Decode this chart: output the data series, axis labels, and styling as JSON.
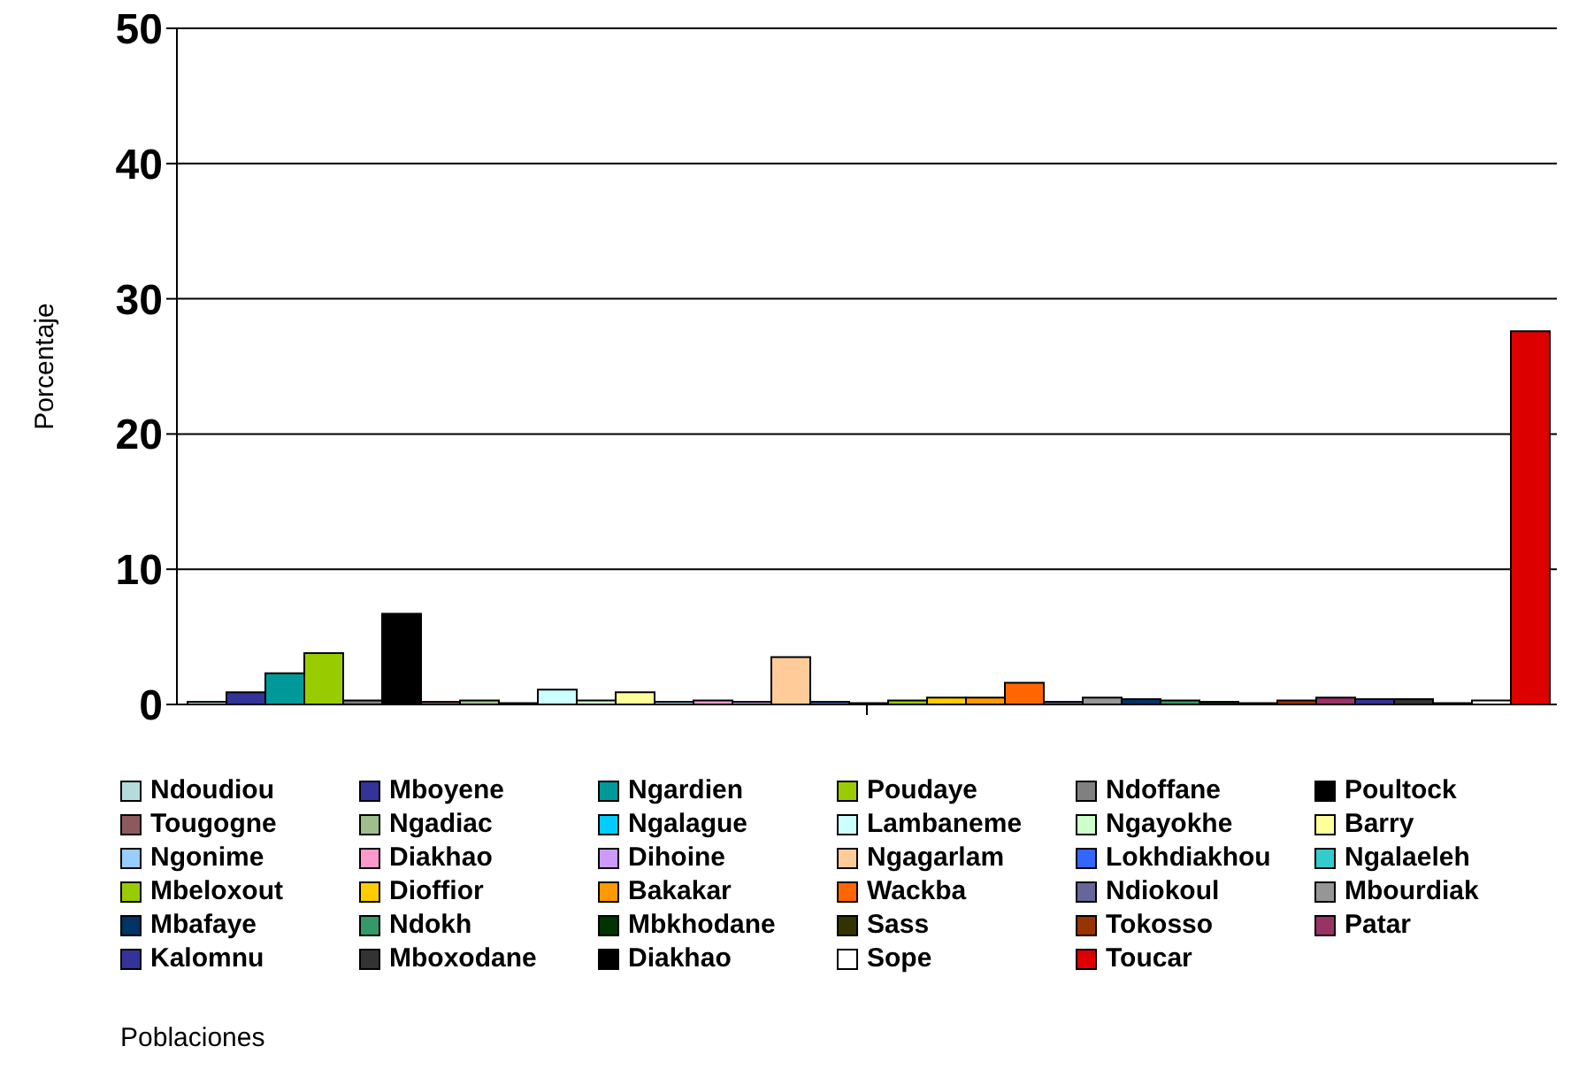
{
  "chart_data": {
    "type": "bar",
    "annotations": [
      "Poblaciones"
    ],
    "ylabel": "Porcentaje",
    "categories": [
      null
    ],
    "ylim": [
      0,
      50
    ],
    "yticks": [
      0,
      10,
      20,
      30,
      40,
      50
    ],
    "grid": "y",
    "legend": "bottom",
    "series": [
      {
        "name": "Ndoudiou",
        "color": "#b4dcdc",
        "values": [
          0.2
        ]
      },
      {
        "name": "Mboyene",
        "color": "#333399",
        "values": [
          0.9
        ]
      },
      {
        "name": "Ngardien",
        "color": "#009999",
        "values": [
          2.3
        ]
      },
      {
        "name": "Poudaye",
        "color": "#99cc00",
        "values": [
          3.8
        ]
      },
      {
        "name": "Ndoffane",
        "color": "#808080",
        "values": [
          0.3
        ]
      },
      {
        "name": "Poultock",
        "color": "#000000",
        "values": [
          6.7
        ]
      },
      {
        "name": "Tougogne",
        "color": "#8c5a5a",
        "values": [
          0.2
        ]
      },
      {
        "name": "Ngadiac",
        "color": "#a0be8c",
        "values": [
          0.3
        ]
      },
      {
        "name": "Ngalague",
        "color": "#00ccff",
        "values": [
          0.1
        ]
      },
      {
        "name": "Lambaneme",
        "color": "#ccffff",
        "values": [
          1.1
        ]
      },
      {
        "name": "Ngayokhe",
        "color": "#ccffcc",
        "values": [
          0.3
        ]
      },
      {
        "name": "Barry",
        "color": "#ffff99",
        "values": [
          0.9
        ]
      },
      {
        "name": "Ngonime",
        "color": "#99ccff",
        "values": [
          0.2
        ]
      },
      {
        "name": "Diakhao",
        "color": "#ff99cc",
        "values": [
          0.3
        ]
      },
      {
        "name": "Dihoine",
        "color": "#cc99ff",
        "values": [
          0.2
        ]
      },
      {
        "name": "Ngagarlam",
        "color": "#ffcc99",
        "values": [
          3.5
        ]
      },
      {
        "name": "Lokhdiakhou",
        "color": "#3366ff",
        "values": [
          0.2
        ]
      },
      {
        "name": "Ngalaeleh",
        "color": "#33cccc",
        "values": [
          0.1
        ]
      },
      {
        "name": "Mbeloxout",
        "color": "#99cc00",
        "values": [
          0.3
        ]
      },
      {
        "name": "Dioffior",
        "color": "#ffcc00",
        "values": [
          0.5
        ]
      },
      {
        "name": "Bakakar",
        "color": "#ff9900",
        "values": [
          0.5
        ]
      },
      {
        "name": "Wackba",
        "color": "#ff6600",
        "values": [
          1.6
        ]
      },
      {
        "name": "Ndiokoul",
        "color": "#666699",
        "values": [
          0.2
        ]
      },
      {
        "name": "Mbourdiak",
        "color": "#969696",
        "values": [
          0.5
        ]
      },
      {
        "name": "Mbafaye",
        "color": "#003366",
        "values": [
          0.4
        ]
      },
      {
        "name": "Ndokh",
        "color": "#339966",
        "values": [
          0.3
        ]
      },
      {
        "name": "Mbkhodane",
        "color": "#003300",
        "values": [
          0.2
        ]
      },
      {
        "name": "Sass",
        "color": "#333300",
        "values": [
          0.1
        ]
      },
      {
        "name": "Tokosso",
        "color": "#993300",
        "values": [
          0.3
        ]
      },
      {
        "name": "Patar",
        "color": "#993366",
        "values": [
          0.5
        ]
      },
      {
        "name": "Kalomnu",
        "color": "#333399",
        "values": [
          0.4
        ]
      },
      {
        "name": "Mboxodane",
        "color": "#333333",
        "values": [
          0.4
        ]
      },
      {
        "name": "Diakhao",
        "color": "#000000",
        "values": [
          0.1
        ]
      },
      {
        "name": "Sope",
        "color": "#ffffff",
        "values": [
          0.3
        ]
      },
      {
        "name": "Toucar",
        "color": "#dd0000",
        "values": [
          27.6
        ]
      }
    ]
  }
}
